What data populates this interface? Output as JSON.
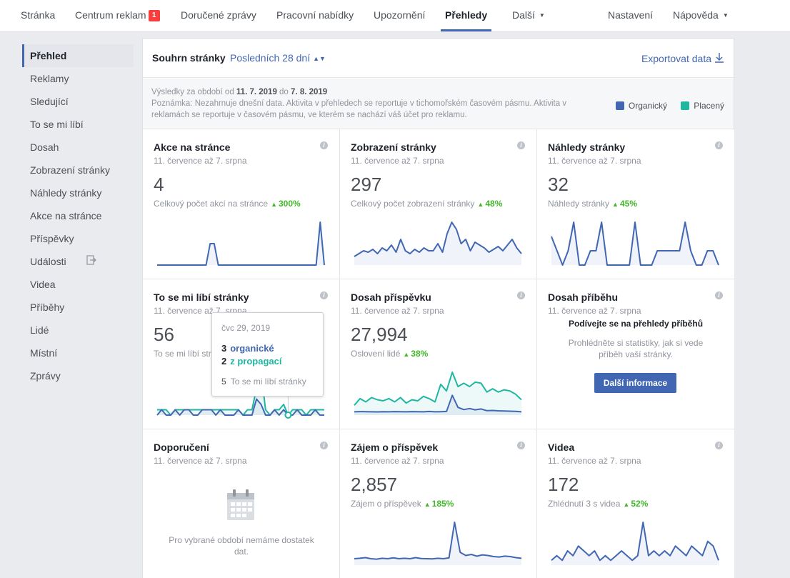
{
  "topnav": {
    "items": [
      {
        "label": "Stránka"
      },
      {
        "label": "Centrum reklam",
        "badge": "1"
      },
      {
        "label": "Doručené zprávy"
      },
      {
        "label": "Pracovní nabídky"
      },
      {
        "label": "Upozornění"
      },
      {
        "label": "Přehledy",
        "active": true
      },
      {
        "label": "Další"
      }
    ],
    "right": [
      {
        "label": "Nastavení"
      },
      {
        "label": "Nápověda"
      }
    ]
  },
  "sidebar": {
    "items": [
      {
        "label": "Přehled",
        "active": true
      },
      {
        "label": "Reklamy"
      },
      {
        "label": "Sledující"
      },
      {
        "label": "To se mi líbí"
      },
      {
        "label": "Dosah"
      },
      {
        "label": "Zobrazení stránky"
      },
      {
        "label": "Náhledy stránky"
      },
      {
        "label": "Akce na stránce"
      },
      {
        "label": "Příspěvky"
      },
      {
        "label": "Události",
        "icon": "export-icon"
      },
      {
        "label": "Videa"
      },
      {
        "label": "Příběhy"
      },
      {
        "label": "Lidé"
      },
      {
        "label": "Místní"
      },
      {
        "label": "Zprávy"
      }
    ]
  },
  "summary": {
    "title": "Souhrn stránky",
    "period": "Posledních 28 dní",
    "export": "Exportovat data",
    "notice_prefix": "Výsledky za období od ",
    "date_from": "11. 7. 2019",
    "notice_mid": " do ",
    "date_to": "7. 8. 2019",
    "notice_rest": "Poznámka: Nezahrnuje dnešní data. Aktivita v přehledech se reportuje v tichomořském časovém pásmu. Aktivita v reklamách se reportuje v časovém pásmu, ve kterém se nachází váš účet pro reklamu.",
    "legend": [
      {
        "label": "Organický",
        "color": "#4267b2"
      },
      {
        "label": "Placený",
        "color": "#1fb7a0"
      }
    ]
  },
  "colors": {
    "organic": "#4267b2",
    "paid": "#1fb7a0",
    "positive": "#42b72a"
  },
  "cards": [
    {
      "title": "Akce na stránce",
      "date": "11. července až 7. srpna",
      "value": "4",
      "metric": "Celkový počet akcí na stránce",
      "change": "300%",
      "organic": [
        0,
        0,
        0,
        0,
        0,
        0,
        0,
        0,
        0,
        0,
        0,
        0,
        0,
        1,
        1,
        0,
        0,
        0,
        0,
        0,
        0,
        0,
        0,
        0,
        0,
        0,
        0,
        0,
        0,
        0,
        0,
        0,
        0,
        0,
        0,
        0,
        0,
        0,
        0,
        0,
        2,
        0
      ]
    },
    {
      "title": "Zobrazení stránky",
      "date": "11. července až 7. srpna",
      "value": "297",
      "metric": "Celkový počet zobrazení stránky",
      "change": "48%",
      "organic": [
        6,
        8,
        10,
        9,
        11,
        8,
        12,
        10,
        14,
        9,
        18,
        10,
        8,
        11,
        9,
        12,
        10,
        10,
        15,
        9,
        22,
        30,
        25,
        15,
        18,
        10,
        16,
        14,
        12,
        9,
        11,
        13,
        10,
        14,
        18,
        12,
        8
      ]
    },
    {
      "title": "Náhledy stránky",
      "date": "11. července až 7. srpna",
      "value": "32",
      "metric": "Náhledy stránky",
      "change": "45%",
      "organic": [
        2,
        1,
        0,
        1,
        3,
        0,
        0,
        1,
        1,
        3,
        0,
        0,
        0,
        0,
        0,
        3,
        0,
        0,
        0,
        1,
        1,
        1,
        1,
        1,
        3,
        1,
        0,
        0,
        1,
        1,
        0
      ]
    },
    {
      "title": "To se mi líbí stránky",
      "date": "11. července až 7. srpna",
      "value": "56",
      "metric": "To se mi líbí stránky",
      "change": "",
      "organic": [
        0,
        1,
        0,
        0,
        1,
        0,
        1,
        1,
        0,
        0,
        1,
        1,
        1,
        0,
        1,
        0,
        0,
        0,
        1,
        0,
        0,
        0,
        3,
        2,
        0,
        0,
        1,
        0,
        1,
        0,
        0,
        1,
        0,
        0,
        0,
        1,
        0,
        0
      ],
      "paid": [
        1,
        1,
        1,
        0,
        1,
        1,
        1,
        1,
        1,
        1,
        1,
        1,
        1,
        1,
        1,
        1,
        1,
        1,
        1,
        0,
        1,
        1,
        5,
        8,
        1,
        0,
        1,
        1,
        2,
        0,
        1,
        1,
        1,
        0,
        1,
        1,
        1,
        1
      ]
    },
    {
      "title": "Dosah příspěvku",
      "date": "11. července až 7. srpna",
      "value": "27,994",
      "metric": "Oslovení lidé",
      "change": "38%",
      "organic": [
        300,
        320,
        310,
        300,
        290,
        310,
        300,
        320,
        310,
        300,
        320,
        310,
        300,
        330,
        300,
        310,
        330,
        1800,
        700,
        500,
        600,
        480,
        560,
        400,
        420,
        390,
        380,
        360,
        340,
        300
      ],
      "paid": [
        900,
        1500,
        1200,
        1600,
        1400,
        1300,
        1500,
        1200,
        1600,
        1100,
        1400,
        1300,
        1700,
        1500,
        1200,
        2800,
        2200,
        3900,
        2600,
        2900,
        2600,
        3000,
        2900,
        2100,
        2400,
        2100,
        2300,
        2200,
        1900,
        1400
      ]
    },
    {
      "title": "Dosah příběhu",
      "date": "11. července až 7. srpna",
      "story_head": "Podívejte se na přehledy příběhů",
      "story_text": "Prohlédněte si statistiky, jak si vede příběh vaší stránky.",
      "button": "Další informace"
    },
    {
      "title": "Doporučení",
      "date": "11. července až 7. srpna",
      "empty_text": "Pro vybrané období nemáme dostatek dat."
    },
    {
      "title": "Zájem o příspěvek",
      "date": "11. července až 7. srpna",
      "value": "2,857",
      "metric": "Zájem o příspěvek",
      "change": "185%",
      "organic": [
        30,
        32,
        35,
        30,
        28,
        32,
        30,
        34,
        30,
        32,
        30,
        35,
        31,
        30,
        29,
        32,
        30,
        34,
        200,
        60,
        45,
        50,
        42,
        48,
        45,
        40,
        38,
        42,
        40,
        35,
        32
      ]
    },
    {
      "title": "Videa",
      "date": "11. července až 7. srpna",
      "value": "172",
      "metric": "Zhlédnutí 3 s videa",
      "change": "52%",
      "organic": [
        1,
        2,
        1,
        3,
        2,
        4,
        3,
        2,
        3,
        1,
        2,
        1,
        2,
        3,
        2,
        1,
        2,
        9,
        2,
        3,
        2,
        3,
        2,
        4,
        3,
        2,
        4,
        3,
        2,
        5,
        4,
        1
      ]
    }
  ],
  "tooltip": {
    "date": "čvc 29, 2019",
    "organic_n": "3",
    "organic_label": "organické",
    "paid_n": "2",
    "paid_label": "z propagací",
    "total_n": "5",
    "total_label": "To se mi líbí stránky"
  }
}
